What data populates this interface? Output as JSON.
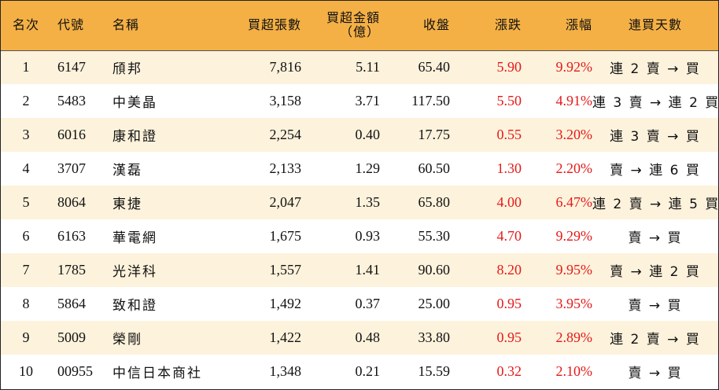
{
  "headers": {
    "rank": "名次",
    "code": "代號",
    "name": "名稱",
    "net_volume": "買超張數",
    "net_amount": "買超金額",
    "net_amount_unit": "（億）",
    "close": "收盤",
    "change": "漲跌",
    "change_pct": "漲幅",
    "streak": "連買天數"
  },
  "colors": {
    "header_bg": "#f4b045",
    "stripe_bg": "#fdf2dc",
    "positive": "#e31a1a"
  },
  "rows": [
    {
      "rank": "1",
      "code": "6147",
      "name": "頎邦",
      "net_volume": "7,816",
      "net_amount": "5.11",
      "close": "65.40",
      "change": "5.90",
      "change_pct": "9.92%",
      "streak": "連 2 賣 → 買"
    },
    {
      "rank": "2",
      "code": "5483",
      "name": "中美晶",
      "net_volume": "3,158",
      "net_amount": "3.71",
      "close": "117.50",
      "change": "5.50",
      "change_pct": "4.91%",
      "streak": "連 3 賣 → 連 2 買"
    },
    {
      "rank": "3",
      "code": "6016",
      "name": "康和證",
      "net_volume": "2,254",
      "net_amount": "0.40",
      "close": "17.75",
      "change": "0.55",
      "change_pct": "3.20%",
      "streak": "連 3 賣 → 買"
    },
    {
      "rank": "4",
      "code": "3707",
      "name": "漢磊",
      "net_volume": "2,133",
      "net_amount": "1.29",
      "close": "60.50",
      "change": "1.30",
      "change_pct": "2.20%",
      "streak": "賣 → 連 6 買"
    },
    {
      "rank": "5",
      "code": "8064",
      "name": "東捷",
      "net_volume": "2,047",
      "net_amount": "1.35",
      "close": "65.80",
      "change": "4.00",
      "change_pct": "6.47%",
      "streak": "連 2 賣 → 連 5 買"
    },
    {
      "rank": "6",
      "code": "6163",
      "name": "華電網",
      "net_volume": "1,675",
      "net_amount": "0.93",
      "close": "55.30",
      "change": "4.70",
      "change_pct": "9.29%",
      "streak": "賣 → 買"
    },
    {
      "rank": "7",
      "code": "1785",
      "name": "光洋科",
      "net_volume": "1,557",
      "net_amount": "1.41",
      "close": "90.60",
      "change": "8.20",
      "change_pct": "9.95%",
      "streak": "賣 → 連 2 買"
    },
    {
      "rank": "8",
      "code": "5864",
      "name": "致和證",
      "net_volume": "1,492",
      "net_amount": "0.37",
      "close": "25.00",
      "change": "0.95",
      "change_pct": "3.95%",
      "streak": "賣 → 買"
    },
    {
      "rank": "9",
      "code": "5009",
      "name": "榮剛",
      "net_volume": "1,422",
      "net_amount": "0.48",
      "close": "33.80",
      "change": "0.95",
      "change_pct": "2.89%",
      "streak": "連 2 賣 → 買"
    },
    {
      "rank": "10",
      "code": "00955",
      "name": "中信日本商社",
      "net_volume": "1,348",
      "net_amount": "0.21",
      "close": "15.59",
      "change": "0.32",
      "change_pct": "2.10%",
      "streak": "賣 → 買"
    }
  ]
}
